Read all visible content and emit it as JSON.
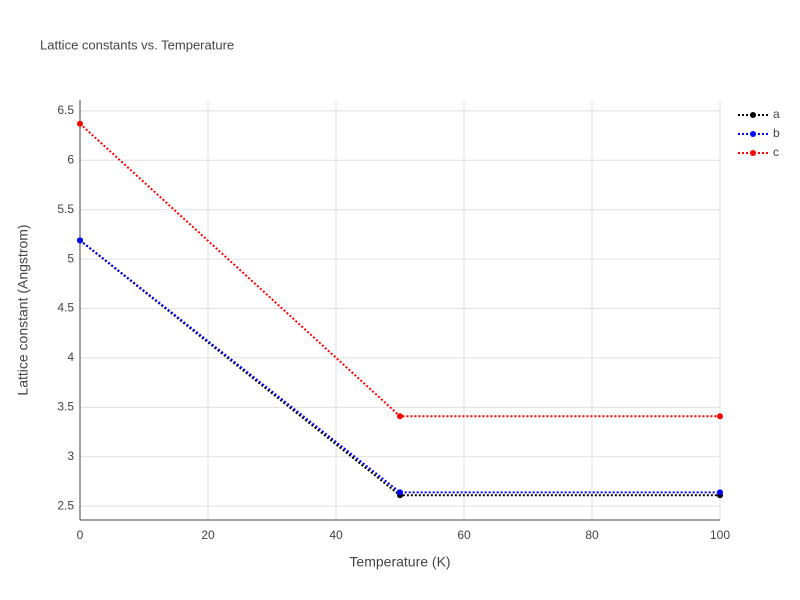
{
  "chart_data": {
    "type": "line",
    "title": "Lattice constants vs. Temperature",
    "x_label": "Temperature (K)",
    "y_label": "Lattice constant (Angstrom)",
    "x": [
      0,
      50,
      100
    ],
    "series": [
      {
        "name": "a",
        "color": "#000000",
        "values": [
          5.19,
          2.61,
          2.61
        ]
      },
      {
        "name": "b",
        "color": "#0000ff",
        "values": [
          5.19,
          2.64,
          2.64
        ]
      },
      {
        "name": "c",
        "color": "#ff0000",
        "values": [
          6.37,
          3.41,
          3.41
        ]
      }
    ],
    "xlim": [
      0,
      100
    ],
    "xticks": [
      0,
      20,
      40,
      60,
      80,
      100
    ],
    "ylim": [
      2.36,
      6.61
    ],
    "yticks": [
      2.5,
      3,
      3.5,
      4,
      4.5,
      5,
      5.5,
      6,
      6.5
    ],
    "grid": true,
    "legend": "top-right",
    "line_style": "dotted"
  }
}
